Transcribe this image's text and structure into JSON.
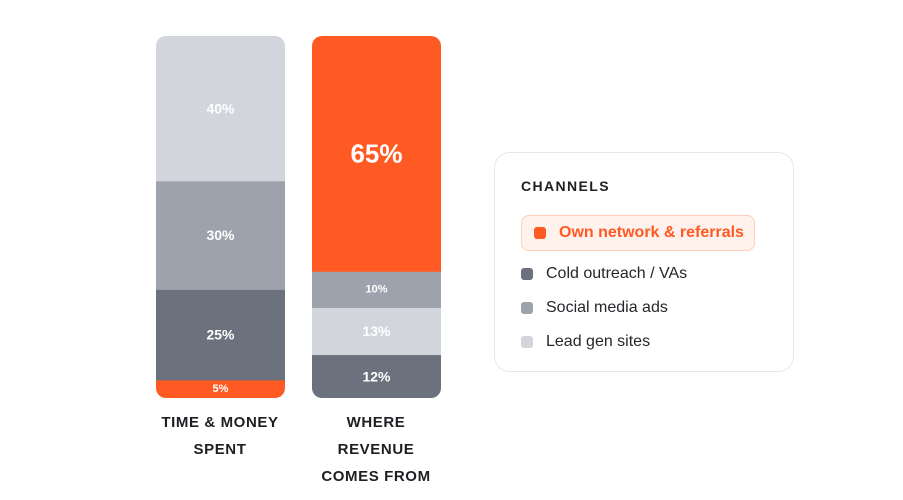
{
  "chart_data": {
    "type": "stacked-bar",
    "unit": "%",
    "bars": [
      {
        "caption": [
          "TIME & MONEY",
          "SPENT"
        ],
        "segments": [
          {
            "channel": "Own network & referrals",
            "value": 5,
            "label": "5%"
          },
          {
            "channel": "Cold outreach / VAs",
            "value": 25,
            "label": "25%"
          },
          {
            "channel": "Social media ads",
            "value": 30,
            "label": "30%"
          },
          {
            "channel": "Lead gen sites",
            "value": 40,
            "label": "40%"
          }
        ]
      },
      {
        "caption": [
          "WHERE",
          "REVENUE",
          "COMES FROM"
        ],
        "segments": [
          {
            "channel": "Cold outreach / VAs",
            "value": 12,
            "label": "12%"
          },
          {
            "channel": "Lead gen sites",
            "value": 13,
            "label": "13%"
          },
          {
            "channel": "Social media ads",
            "value": 10,
            "label": "10%"
          },
          {
            "channel": "Own network & referrals",
            "value": 65,
            "label": "65%"
          }
        ]
      }
    ],
    "colors": {
      "Own network & referrals": "#ff5a23",
      "Cold outreach / VAs": "#6b717d",
      "Social media ads": "#9da2ac",
      "Lead gen sites": "#d2d5dc"
    },
    "legend": {
      "title": "CHANNELS",
      "placement": "right",
      "items": [
        {
          "label": "Own network & referrals",
          "highlighted": true
        },
        {
          "label": "Cold outreach / VAs",
          "highlighted": false
        },
        {
          "label": "Social media ads",
          "highlighted": false
        },
        {
          "label": "Lead gen sites",
          "highlighted": false
        }
      ]
    },
    "grid": false
  }
}
